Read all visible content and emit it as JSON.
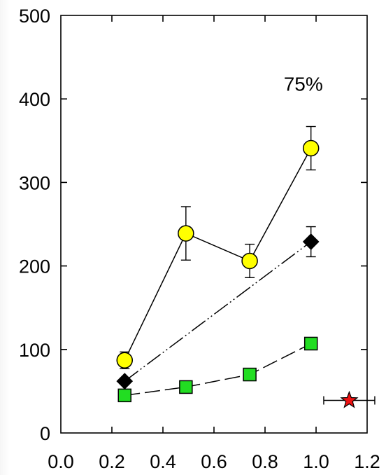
{
  "chart_data": {
    "type": "line",
    "title": "",
    "xlabel": "",
    "ylabel": "",
    "xlim": [
      0.0,
      1.2
    ],
    "ylim": [
      0,
      500
    ],
    "x_ticks": [
      "0.0",
      "0.2",
      "0.4",
      "0.6",
      "0.8",
      "1.0",
      "1.2"
    ],
    "y_ticks": [
      "0",
      "100",
      "200",
      "300",
      "400",
      "500"
    ],
    "grid": false,
    "legend": "none",
    "annotations": [
      {
        "text": "75%",
        "x": 0.95,
        "y": 410
      }
    ],
    "series": [
      {
        "marker": "circle",
        "color": "#ffff00",
        "line_style": "solid",
        "points": [
          {
            "x": 0.25,
            "y": 87,
            "err": 10
          },
          {
            "x": 0.49,
            "y": 239,
            "err": 32
          },
          {
            "x": 0.74,
            "y": 206,
            "err": 20
          },
          {
            "x": 0.98,
            "y": 341,
            "err": 26
          }
        ]
      },
      {
        "marker": "diamond",
        "color": "#000000",
        "line_style": "dash-dot-dot",
        "points": [
          {
            "x": 0.25,
            "y": 62,
            "err": 0
          },
          {
            "x": 0.98,
            "y": 229,
            "err": 18
          }
        ]
      },
      {
        "marker": "square",
        "color": "#22dd22",
        "line_style": "dashed",
        "points": [
          {
            "x": 0.25,
            "y": 45,
            "err": 0
          },
          {
            "x": 0.49,
            "y": 55,
            "err": 0
          },
          {
            "x": 0.74,
            "y": 70,
            "err": 0
          },
          {
            "x": 0.98,
            "y": 107,
            "err": 7
          }
        ]
      },
      {
        "marker": "star",
        "color": "#ee1111",
        "line_style": "none",
        "points": [
          {
            "x": 1.13,
            "y": 39,
            "xerr": 0.1
          }
        ]
      }
    ]
  }
}
